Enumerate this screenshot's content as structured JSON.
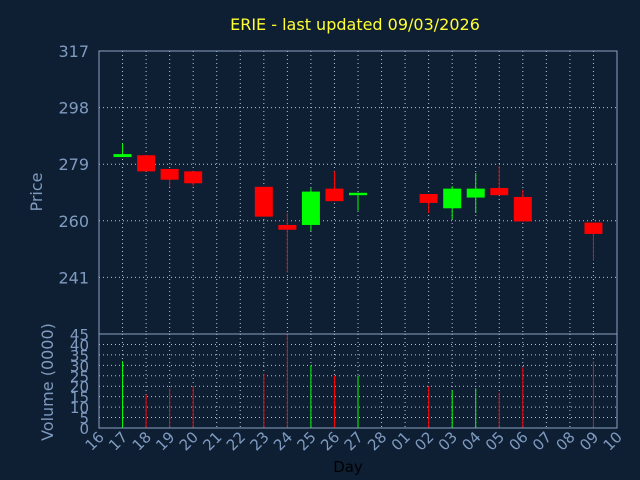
{
  "chart_data": {
    "type": "candlestick",
    "title": "ERIE - last updated 09/03/2026",
    "ylabel": "Price",
    "volume_label": "Volume (0000)",
    "xlabel": "Day",
    "ylim": [
      222,
      317
    ],
    "price_ticks": [
      "317",
      "298",
      "279",
      "260",
      "241"
    ],
    "price_tick_values": [
      317,
      298,
      279,
      260,
      241
    ],
    "volume_ylim": [
      0,
      45
    ],
    "volume_ticks": [
      "45",
      "40",
      "35",
      "30",
      "25",
      "20",
      "15",
      "10",
      "5",
      "0"
    ],
    "volume_tick_values": [
      45,
      40,
      35,
      30,
      25,
      20,
      15,
      10,
      5,
      0
    ],
    "x_ticks": [
      "16",
      "17",
      "18",
      "19",
      "20",
      "21",
      "22",
      "23",
      "24",
      "25",
      "26",
      "27",
      "28",
      "01",
      "02",
      "03",
      "04",
      "05",
      "06",
      "07",
      "08",
      "09",
      "10"
    ],
    "up_color": "#00ff00",
    "down_color": "#ff0000",
    "grid": true,
    "candles": [
      {
        "day": "17",
        "open": 281.4,
        "close": 282.4,
        "high": 286.0,
        "low": 281.4,
        "volume": 32
      },
      {
        "day": "18",
        "open": 282.0,
        "close": 276.6,
        "high": 282.0,
        "low": 276.6,
        "volume": 16
      },
      {
        "day": "19",
        "open": 277.4,
        "close": 273.8,
        "high": 277.4,
        "low": 271.4,
        "volume": 19
      },
      {
        "day": "20",
        "open": 276.6,
        "close": 272.6,
        "high": 276.6,
        "low": 271.8,
        "volume": 20
      },
      {
        "day": "23",
        "open": 271.4,
        "close": 261.4,
        "high": 271.4,
        "low": 261.4,
        "volume": 26
      },
      {
        "day": "24",
        "open": 258.6,
        "close": 257.0,
        "high": 262.6,
        "low": 242.6,
        "volume": 45
      },
      {
        "day": "25",
        "open": 258.6,
        "close": 269.8,
        "high": 271.0,
        "low": 256.6,
        "volume": 30
      },
      {
        "day": "26",
        "open": 270.8,
        "close": 266.6,
        "high": 276.6,
        "low": 266.6,
        "volume": 25
      },
      {
        "day": "27",
        "open": 268.6,
        "close": 269.4,
        "high": 269.4,
        "low": 263.4,
        "volume": 25
      },
      {
        "day": "02",
        "open": 269.0,
        "close": 266.0,
        "high": 269.0,
        "low": 262.6,
        "volume": 20
      },
      {
        "day": "03",
        "open": 264.2,
        "close": 270.8,
        "high": 271.6,
        "low": 260.6,
        "volume": 18
      },
      {
        "day": "04",
        "open": 267.8,
        "close": 270.8,
        "high": 276.0,
        "low": 262.6,
        "volume": 19
      },
      {
        "day": "05",
        "open": 271.0,
        "close": 268.6,
        "high": 278.4,
        "low": 268.6,
        "volume": 17
      },
      {
        "day": "06",
        "open": 268.0,
        "close": 259.8,
        "high": 270.4,
        "low": 259.8,
        "volume": 29
      },
      {
        "day": "09",
        "open": 259.4,
        "close": 255.6,
        "high": 259.4,
        "low": 246.6,
        "volume": 32
      }
    ]
  }
}
